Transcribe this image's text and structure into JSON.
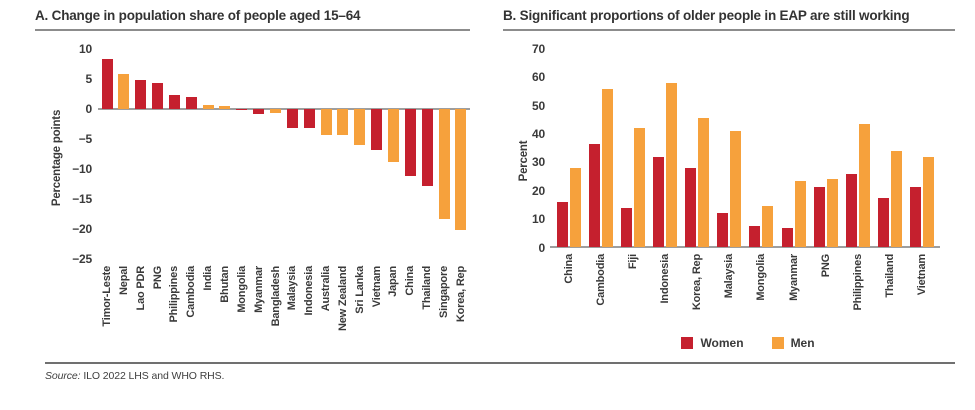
{
  "colors": {
    "red": "#C5202E",
    "orange": "#F6A13C"
  },
  "source": {
    "label": "Source:",
    "text": " ILO 2022 LHS and WHO RHS."
  },
  "chart_data": [
    {
      "type": "bar",
      "title": "A. Change in population share of people aged 15–64",
      "ylabel": "Percentage points",
      "ylim": [
        -25,
        10
      ],
      "yticks": [
        10,
        5,
        0,
        -5,
        -10,
        -15,
        -20,
        -25
      ],
      "grid": false,
      "categories": [
        "Timor-Leste",
        "Nepal",
        "Lao PDR",
        "PNG",
        "Philippines",
        "Cambodia",
        "India",
        "Bhutan",
        "Mongolia",
        "Myanmar",
        "Bangladesh",
        "Malaysia",
        "Indonesia",
        "Australia",
        "New Zealand",
        "Sri Lanka",
        "Vietnam",
        "Japan",
        "China",
        "Thailand",
        "Singapore",
        "Korea, Rep"
      ],
      "values": [
        8.3,
        5.8,
        4.9,
        4.3,
        2.3,
        2.0,
        0.6,
        0.5,
        -0.1,
        -0.8,
        -0.7,
        -3.2,
        -3.2,
        -4.3,
        -4.4,
        -6.0,
        -6.8,
        -8.8,
        -11.1,
        -12.8,
        -18.3,
        -20.1
      ],
      "bar_colors": [
        "red",
        "orange",
        "red",
        "red",
        "red",
        "red",
        "orange",
        "orange",
        "red",
        "red",
        "orange",
        "red",
        "red",
        "orange",
        "orange",
        "orange",
        "red",
        "orange",
        "red",
        "red",
        "orange",
        "orange"
      ]
    },
    {
      "type": "bar",
      "title": "B. Significant proportions of older people in EAP are still working",
      "ylabel": "Percent",
      "ylim": [
        0,
        70
      ],
      "yticks": [
        70,
        60,
        50,
        40,
        30,
        20,
        10,
        0
      ],
      "grid": false,
      "legend_position": "bottom",
      "categories": [
        "China",
        "Cambodia",
        "Fiji",
        "Indonesia",
        "Korea, Rep",
        "Malaysia",
        "Mongolia",
        "Myanmar",
        "PNG",
        "Philippines",
        "Thailand",
        "Vietnam"
      ],
      "series": [
        {
          "name": "Women",
          "color": "red",
          "values": [
            16,
            36.5,
            14,
            32,
            28,
            12,
            7.5,
            7,
            21.5,
            26,
            17.5,
            21.5
          ]
        },
        {
          "name": "Men",
          "color": "orange",
          "values": [
            28,
            56,
            42,
            58,
            45.5,
            41,
            14.5,
            23.5,
            24,
            43.5,
            34,
            32
          ]
        }
      ]
    }
  ]
}
